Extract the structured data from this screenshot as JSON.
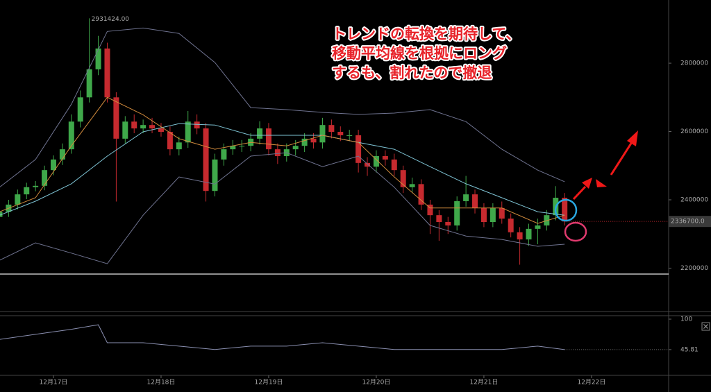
{
  "chart_data": [
    {
      "type": "candlestick",
      "x": [
        -12,
        -10,
        -8,
        -6,
        -4,
        -2,
        0,
        2,
        4,
        6,
        8,
        10,
        12,
        14,
        16,
        18,
        20,
        22,
        24,
        26,
        28,
        30,
        32,
        34,
        36,
        38,
        40,
        42,
        44,
        46,
        48,
        50,
        52,
        54,
        56,
        58,
        60,
        62,
        64,
        66,
        68,
        70,
        72,
        74,
        76,
        78,
        80,
        82,
        84,
        86,
        88,
        90,
        92,
        94,
        96,
        98,
        100,
        102,
        104,
        106,
        108,
        110,
        112,
        114
      ],
      "open": [
        2350000,
        2365000,
        2386000,
        2416000,
        2437000,
        2441000,
        2487000,
        2518000,
        2548000,
        2629000,
        2700000,
        2782000,
        2843000,
        2700000,
        2579000,
        2629000,
        2609000,
        2619000,
        2609000,
        2599000,
        2548000,
        2568000,
        2629000,
        2609000,
        2426000,
        2518000,
        2548000,
        2558000,
        2558000,
        2579000,
        2609000,
        2548000,
        2528000,
        2548000,
        2558000,
        2579000,
        2568000,
        2619000,
        2599000,
        2589000,
        2589000,
        2508000,
        2497000,
        2528000,
        2518000,
        2487000,
        2437000,
        2446000,
        2386000,
        2355000,
        2335000,
        2325000,
        2396000,
        2416000,
        2376000,
        2335000,
        2376000,
        2345000,
        2305000,
        2284000,
        2315000,
        2325000,
        2355000,
        2406000
      ],
      "high": [
        2380000,
        2400000,
        2430000,
        2450000,
        2455000,
        2500000,
        2530000,
        2565000,
        2650000,
        2720000,
        2931424,
        2880000,
        2860000,
        2715000,
        2645000,
        2650000,
        2635000,
        2640000,
        2625000,
        2615000,
        2585000,
        2660000,
        2650000,
        2625000,
        2535000,
        2565000,
        2575000,
        2575000,
        2595000,
        2630000,
        2625000,
        2565000,
        2565000,
        2575000,
        2595000,
        2595000,
        2640000,
        2635000,
        2615000,
        2605000,
        2605000,
        2525000,
        2545000,
        2545000,
        2535000,
        2500000,
        2465000,
        2460000,
        2400000,
        2370000,
        2350000,
        2410000,
        2470000,
        2430000,
        2390000,
        2390000,
        2395000,
        2360000,
        2320000,
        2330000,
        2345000,
        2370000,
        2440000,
        2420000
      ],
      "low": [
        2335000,
        2350000,
        2372000,
        2402000,
        2425000,
        2428000,
        2472000,
        2502000,
        2535000,
        2612000,
        2685000,
        2765000,
        2685000,
        2395000,
        2565000,
        2595000,
        2595000,
        2595000,
        2585000,
        2530000,
        2530000,
        2552000,
        2592000,
        2395000,
        2410000,
        2500000,
        2532000,
        2540000,
        2542000,
        2562000,
        2530000,
        2505000,
        2512000,
        2530000,
        2540000,
        2550000,
        2550000,
        2580000,
        2572000,
        2572000,
        2480000,
        2470000,
        2480000,
        2500000,
        2470000,
        2420000,
        2420000,
        2370000,
        2300000,
        2280000,
        2300000,
        2310000,
        2380000,
        2360000,
        2320000,
        2320000,
        2330000,
        2290000,
        2210000,
        2265000,
        2270000,
        2310000,
        2340000,
        2325000
      ],
      "close": [
        2365000,
        2386000,
        2416000,
        2437000,
        2441000,
        2487000,
        2518000,
        2548000,
        2629000,
        2700000,
        2782000,
        2843000,
        2700000,
        2579000,
        2629000,
        2609000,
        2619000,
        2609000,
        2599000,
        2548000,
        2568000,
        2629000,
        2609000,
        2426000,
        2518000,
        2548000,
        2558000,
        2558000,
        2579000,
        2609000,
        2548000,
        2528000,
        2548000,
        2558000,
        2579000,
        2568000,
        2619000,
        2599000,
        2589000,
        2589000,
        2508000,
        2497000,
        2528000,
        2518000,
        2487000,
        2437000,
        2446000,
        2386000,
        2355000,
        2335000,
        2325000,
        2396000,
        2416000,
        2376000,
        2335000,
        2376000,
        2345000,
        2305000,
        2284000,
        2315000,
        2325000,
        2355000,
        2406000,
        2336700
      ],
      "up_color": "#3fa84a",
      "down_color": "#c62a2f",
      "series": [
        {
          "color": "#6f7390",
          "x": [
            -12,
            -4,
            4,
            12,
            20,
            28,
            36,
            44,
            52,
            60,
            68,
            76,
            84,
            92,
            100,
            108,
            114
          ],
          "values": [
            2437000,
            2518000,
            2680000,
            2893000,
            2903000,
            2887000,
            2802000,
            2670000,
            2664000,
            2656000,
            2650000,
            2654000,
            2664000,
            2629000,
            2548000,
            2487000,
            2453000
          ]
        },
        {
          "color": "#6f7390",
          "x": [
            -12,
            -4,
            4,
            12,
            20,
            28,
            36,
            44,
            52,
            60,
            68,
            76,
            84,
            92,
            100,
            108,
            114
          ],
          "values": [
            2223000,
            2274000,
            2244000,
            2213000,
            2355000,
            2467000,
            2446000,
            2528000,
            2538000,
            2497000,
            2528000,
            2437000,
            2325000,
            2294000,
            2284000,
            2264000,
            2270000
          ]
        },
        {
          "color": "#7ec3d4",
          "x": [
            -12,
            -4,
            4,
            12,
            20,
            28,
            36,
            44,
            52,
            60,
            68,
            76,
            84,
            92,
            100,
            108,
            114
          ],
          "values": [
            2355000,
            2396000,
            2447000,
            2528000,
            2599000,
            2623000,
            2619000,
            2589000,
            2589000,
            2589000,
            2568000,
            2548000,
            2497000,
            2447000,
            2406000,
            2365000,
            2355000
          ]
        },
        {
          "color": "#d08a3c",
          "x": [
            -12,
            -4,
            4,
            12,
            20,
            28,
            36,
            44,
            52,
            60,
            68,
            76,
            84,
            92,
            100,
            108,
            114
          ],
          "values": [
            2365000,
            2406000,
            2558000,
            2700000,
            2649000,
            2579000,
            2548000,
            2568000,
            2558000,
            2589000,
            2568000,
            2467000,
            2376000,
            2376000,
            2376000,
            2331000,
            2355000
          ]
        }
      ],
      "xlim": [
        -11.92,
        137.2
      ],
      "ylim": [
        2075000,
        2985000
      ],
      "yticks": [
        2200000,
        2400000,
        2600000,
        2800000
      ],
      "high_label": {
        "value": 2931424,
        "label": "2931424.00"
      },
      "current_price": {
        "value": 2336700,
        "label": "2336700.0"
      },
      "annotation": [
        "トレンドの転換を期待して、",
        "移動平均線を根拠にロング",
        "するも、割れたので撤退"
      ]
    },
    {
      "type": "line",
      "series": [
        {
          "color": "#8a8fb0",
          "x": [
            -12,
            -4,
            4,
            10,
            12,
            20,
            28,
            36,
            44,
            52,
            60,
            68,
            76,
            84,
            92,
            100,
            108,
            114
          ],
          "values": [
            64,
            73,
            82,
            90,
            58,
            58,
            52,
            46,
            52,
            52,
            58,
            52,
            46,
            46,
            46,
            46,
            52,
            45.81
          ]
        }
      ],
      "xlim": [
        -11.92,
        137.2
      ],
      "ylim": [
        0,
        100
      ],
      "yticks": [
        100,
        45.81
      ],
      "xticks": [
        {
          "value": 0,
          "label": "12月17日"
        },
        {
          "value": 24,
          "label": "12月18日"
        },
        {
          "value": 48,
          "label": "12月19日"
        },
        {
          "value": 72,
          "label": "12月20日"
        },
        {
          "value": 96,
          "label": "12月21日"
        },
        {
          "value": 120,
          "label": "12月22日"
        }
      ]
    }
  ]
}
